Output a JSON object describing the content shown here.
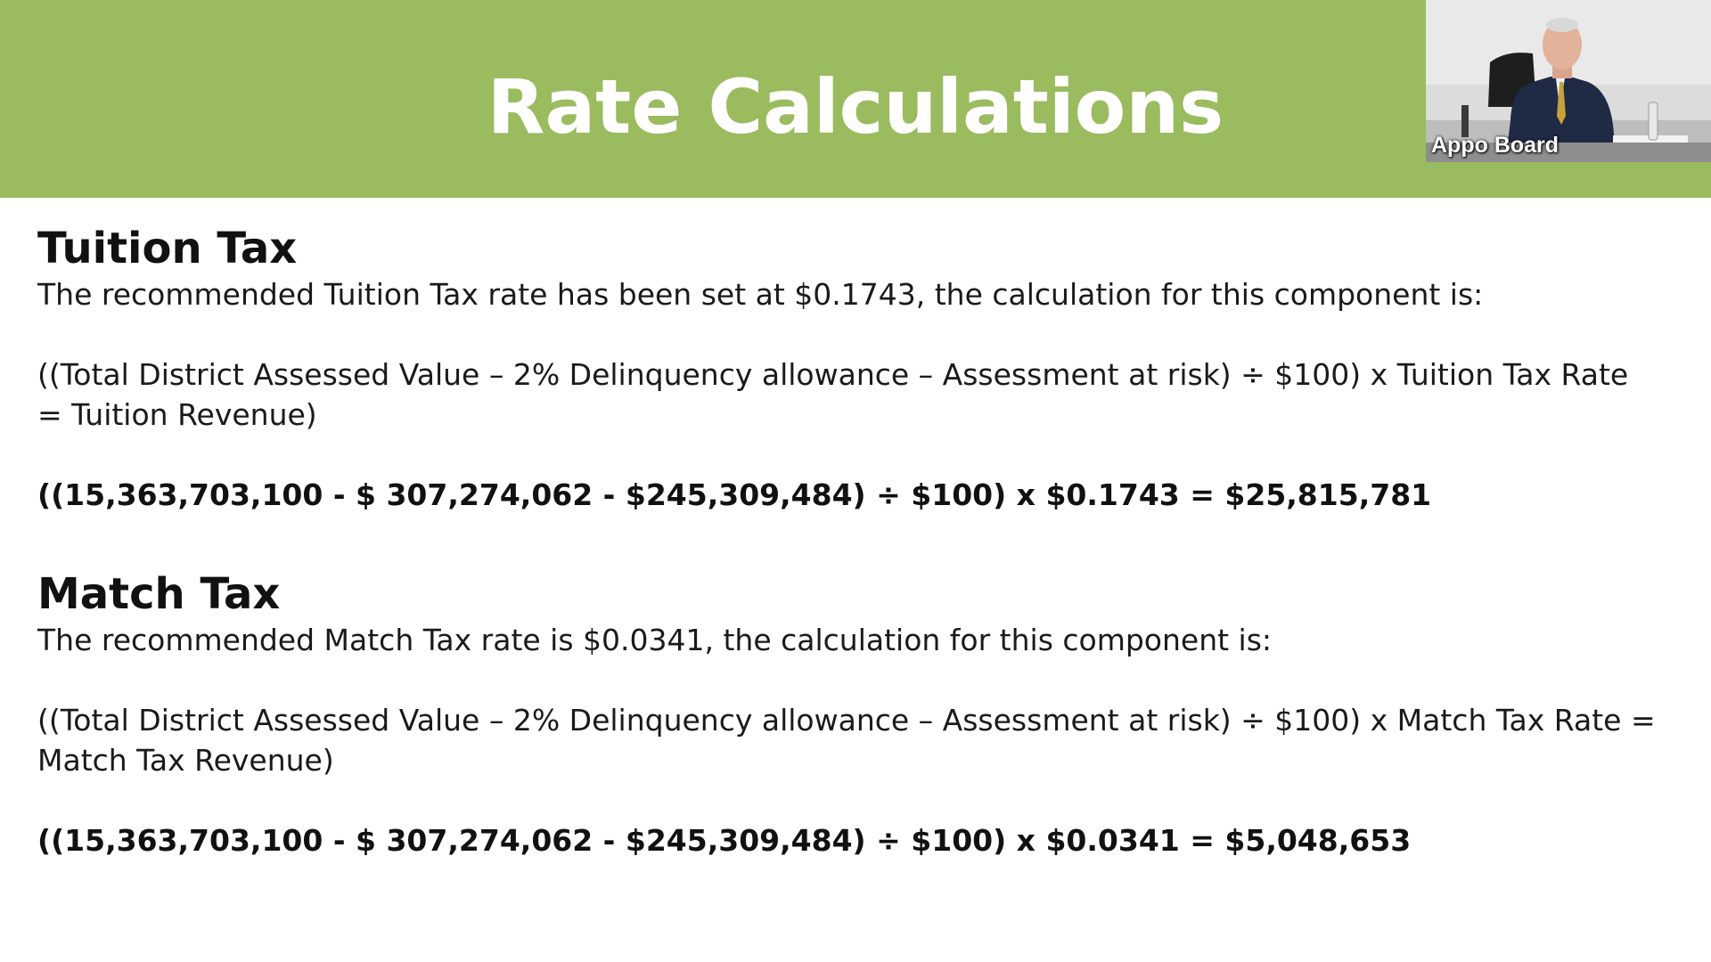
{
  "header": {
    "title": "Rate Calculations",
    "background_color": "#9bbb5f",
    "title_color": "#ffffff"
  },
  "video_tile": {
    "participant_label": "Appo Board"
  },
  "sections": [
    {
      "heading": "Tuition Tax",
      "intro": "The recommended Tuition Tax rate has been set at $0.1743, the calculation for this component is:",
      "formula": "((Total District Assessed Value – 2% Delinquency allowance – Assessment at risk) ÷ $100) x Tuition Tax Rate = Tuition Revenue)",
      "calculation": "((15,363,703,100 - $ 307,274,062 - $245,309,484) ÷ $100) x $0.1743 = $25,815,781"
    },
    {
      "heading": "Match Tax",
      "intro": "The recommended Match Tax rate is $0.0341, the calculation for this component is:",
      "formula": "((Total District Assessed Value – 2% Delinquency allowance – Assessment at risk) ÷ $100) x Match Tax Rate = Match Tax Revenue)",
      "calculation": "((15,363,703,100 - $ 307,274,062 - $245,309,484) ÷ $100) x $0.0341 = $5,048,653"
    }
  ]
}
